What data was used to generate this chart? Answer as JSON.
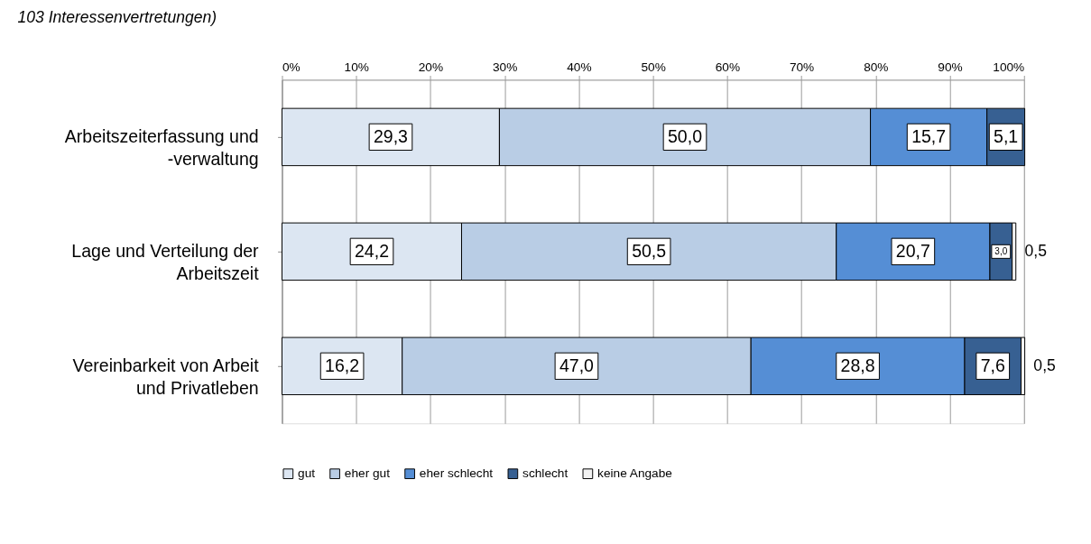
{
  "chart_data": {
    "type": "bar",
    "orientation": "horizontal",
    "stacked": true,
    "annotations": [
      "103 Interessenvertretungen)"
    ],
    "categories": [
      "Arbeitszeiterfassung und\n-verwaltung",
      "Lage und Verteilung der\nArbeitszeit",
      "Vereinbarkeit von Arbeit\nund Privatleben"
    ],
    "series": [
      {
        "name": "gut",
        "color": "#dce6f2",
        "values": [
          29.3,
          24.2,
          16.2
        ],
        "value_labels": [
          "29,3",
          "24,2",
          "16,2"
        ]
      },
      {
        "name": "eher gut",
        "color": "#b9cde5",
        "values": [
          50.0,
          50.5,
          47.0
        ],
        "value_labels": [
          "50,0",
          "50,5",
          "47,0"
        ]
      },
      {
        "name": "eher schlecht",
        "color": "#558ed5",
        "values": [
          15.7,
          20.7,
          28.8
        ],
        "value_labels": [
          "15,7",
          "20,7",
          "28,8"
        ]
      },
      {
        "name": "schlecht",
        "color": "#376092",
        "values": [
          5.1,
          3.0,
          7.6
        ],
        "value_labels": [
          "5,1",
          "3,0",
          "7,6"
        ]
      },
      {
        "name": "keine Angabe",
        "color": "#f2f2f2",
        "values": [
          null,
          0.5,
          0.5
        ],
        "value_labels": [
          null,
          "0,5",
          "0,5"
        ]
      }
    ],
    "xlim": [
      0,
      100
    ],
    "xticks": [
      {
        "value": 0,
        "label": "0%"
      },
      {
        "value": 10,
        "label": "10%"
      },
      {
        "value": 20,
        "label": "20%"
      },
      {
        "value": 30,
        "label": "30%"
      },
      {
        "value": 40,
        "label": "40%"
      },
      {
        "value": 50,
        "label": "50%"
      },
      {
        "value": 60,
        "label": "60%"
      },
      {
        "value": 70,
        "label": "70%"
      },
      {
        "value": 80,
        "label": "80%"
      },
      {
        "value": 90,
        "label": "90%"
      },
      {
        "value": 100,
        "label": "100%"
      }
    ],
    "grid": "x",
    "legend": "bottom"
  }
}
